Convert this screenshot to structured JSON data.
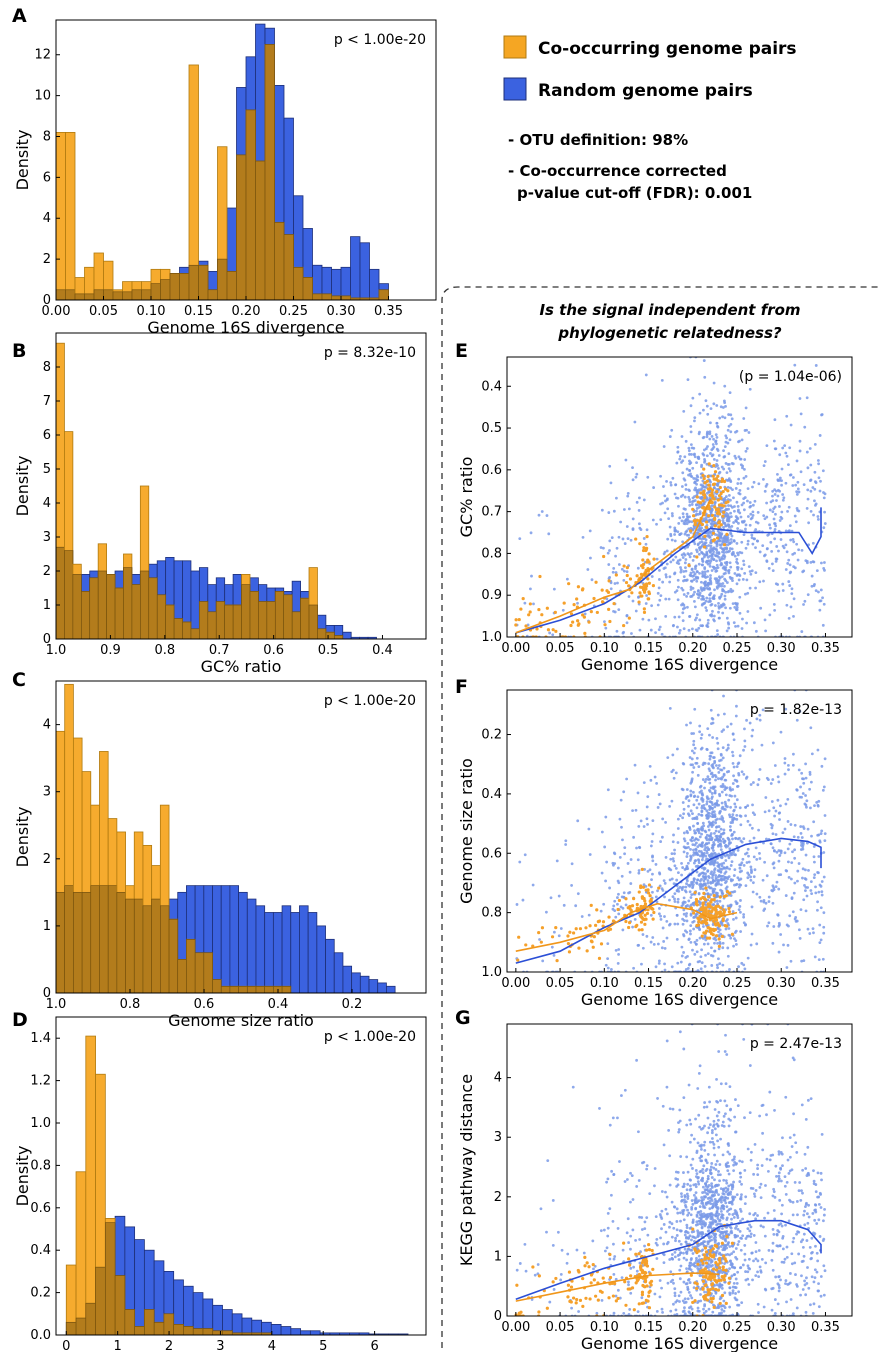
{
  "legend": {
    "items": [
      {
        "label": "Co-occurring genome pairs",
        "color": "#f5a623"
      },
      {
        "label": "Random genome pairs",
        "color": "#3b62e0"
      }
    ],
    "notes": [
      "- OTU definition: 98%",
      "- Co-occurrence corrected",
      "p-value cut-off (FDR): 0.001"
    ]
  },
  "section_title": [
    "Is the signal independent from",
    "phylogenetic relatedness?"
  ],
  "colors": {
    "co": "#f5a623",
    "co_edge": "#b07a10",
    "rand": "#3b62e0",
    "rand_edge": "#1d2f78",
    "overlap": "#b37c1c",
    "co_dot": "#f5a02a",
    "rand_dot": "#7a9ae8"
  },
  "chart_data": [
    {
      "panel": "A",
      "type": "histogram",
      "p_text": "p < 1.00e-20",
      "xlabel": "Genome 16S divergence",
      "ylabel": "Density",
      "xlim": [
        0,
        0.4
      ],
      "ylim": [
        0,
        13.7
      ],
      "xticks": [
        0,
        0.05,
        0.1,
        0.15,
        0.2,
        0.25,
        0.3,
        0.35
      ],
      "xticklabels": [
        "0.00",
        "0.05",
        "0.10",
        "0.15",
        "0.20",
        "0.25",
        "0.30",
        "0.35"
      ],
      "yticks": [
        0,
        2,
        4,
        6,
        8,
        10,
        12
      ],
      "yticklabels": [
        "0",
        "2",
        "4",
        "6",
        "8",
        "10",
        "12"
      ],
      "series": [
        {
          "name": "Co-occurring genome pairs",
          "x0": 0,
          "binw": 0.01,
          "values": [
            8.2,
            8.2,
            1.1,
            1.6,
            2.3,
            1.9,
            0.5,
            0.9,
            0.9,
            0.9,
            1.5,
            1.5,
            1.3,
            1.3,
            11.5,
            1.7,
            0.5,
            7.5,
            1.4,
            7.1,
            9.3,
            6.8,
            12.5,
            3.8,
            3.2,
            1.6,
            1.1,
            0.3,
            0.3,
            0.2,
            0.2,
            0.1,
            0.1,
            0.1,
            0.5
          ]
        },
        {
          "name": "Random genome pairs",
          "x0": 0,
          "binw": 0.01,
          "values": [
            0.5,
            0.5,
            0.3,
            0.3,
            0.5,
            0.5,
            0.4,
            0.4,
            0.5,
            0.5,
            0.8,
            1.0,
            1.3,
            1.6,
            1.7,
            1.9,
            1.4,
            2.0,
            4.5,
            10.4,
            11.9,
            13.5,
            13.3,
            10.5,
            8.9,
            5.1,
            3.5,
            1.7,
            1.6,
            1.5,
            1.6,
            3.1,
            2.8,
            1.5,
            0.8
          ]
        }
      ]
    },
    {
      "panel": "B",
      "type": "histogram",
      "p_text": "p = 8.32e-10",
      "xlabel": "GC% ratio",
      "ylabel": "Density",
      "xlim": [
        1.0,
        0.32
      ],
      "ylim": [
        0,
        9.0
      ],
      "xticks": [
        1.0,
        0.9,
        0.8,
        0.7,
        0.6,
        0.5,
        0.4
      ],
      "xticklabels": [
        "1.0",
        "0.9",
        "0.8",
        "0.7",
        "0.6",
        "0.5",
        "0.4"
      ],
      "yticks": [
        0,
        1,
        2,
        3,
        4,
        5,
        6,
        7,
        8
      ],
      "yticklabels": [
        "0",
        "1",
        "2",
        "3",
        "4",
        "5",
        "6",
        "7",
        "8"
      ],
      "series": [
        {
          "name": "Co-occurring genome pairs",
          "x0": 1.0,
          "binw": -0.0155,
          "values": [
            8.7,
            6.1,
            2.2,
            1.4,
            1.8,
            2.8,
            1.9,
            1.5,
            2.5,
            1.6,
            4.5,
            1.8,
            1.3,
            1.0,
            0.6,
            0.5,
            0.3,
            1.1,
            0.8,
            1.1,
            1.0,
            1.0,
            1.9,
            1.4,
            1.1,
            1.1,
            1.4,
            1.3,
            0.8,
            1.2,
            2.1,
            0.3,
            0.2,
            0.1,
            0,
            0,
            0,
            0
          ]
        },
        {
          "name": "Random genome pairs",
          "x0": 1.0,
          "binw": -0.0155,
          "values": [
            2.7,
            2.6,
            1.9,
            1.9,
            2.0,
            2.0,
            1.9,
            2.0,
            2.1,
            1.9,
            2.0,
            2.2,
            2.3,
            2.4,
            2.3,
            2.3,
            2.0,
            2.1,
            1.6,
            1.8,
            1.6,
            1.9,
            1.6,
            1.8,
            1.6,
            1.5,
            1.5,
            1.4,
            1.7,
            1.4,
            1.0,
            0.7,
            0.4,
            0.4,
            0.2,
            0.05,
            0.05,
            0.05
          ]
        }
      ]
    },
    {
      "panel": "C",
      "type": "histogram",
      "p_text": "p < 1.00e-20",
      "xlabel": "Genome size ratio",
      "ylabel": "Density",
      "xlim": [
        1.0,
        0.0
      ],
      "ylim": [
        0,
        4.65
      ],
      "xticks": [
        1.0,
        0.8,
        0.6,
        0.4,
        0.2
      ],
      "xticklabels": [
        "1.0",
        "0.8",
        "0.6",
        "0.4",
        "0.2"
      ],
      "yticks": [
        0,
        1,
        2,
        3,
        4
      ],
      "yticklabels": [
        "0",
        "1",
        "2",
        "3",
        "4"
      ],
      "series": [
        {
          "name": "Co-occurring genome pairs",
          "x0": 1.0,
          "binw": -0.0235,
          "values": [
            3.9,
            4.6,
            3.8,
            3.3,
            2.8,
            3.6,
            2.6,
            2.4,
            1.6,
            2.4,
            2.2,
            1.9,
            2.8,
            1.1,
            0.5,
            0.8,
            0.6,
            0.6,
            0.2,
            0.1,
            0.1,
            0.1,
            0.1,
            0.1,
            0.1,
            0.1,
            0.1,
            0,
            0,
            0,
            0,
            0,
            0,
            0,
            0,
            0,
            0,
            0,
            0
          ]
        },
        {
          "name": "Random genome pairs",
          "x0": 1.0,
          "binw": -0.0235,
          "values": [
            1.5,
            1.6,
            1.5,
            1.5,
            1.6,
            1.6,
            1.6,
            1.5,
            1.4,
            1.4,
            1.3,
            1.4,
            1.3,
            1.4,
            1.5,
            1.6,
            1.6,
            1.6,
            1.6,
            1.6,
            1.6,
            1.5,
            1.4,
            1.3,
            1.2,
            1.2,
            1.3,
            1.2,
            1.3,
            1.2,
            1.0,
            0.8,
            0.6,
            0.4,
            0.3,
            0.25,
            0.2,
            0.15,
            0.1
          ]
        }
      ]
    },
    {
      "panel": "D",
      "type": "histogram",
      "p_text": "p < 1.00e-20",
      "xlabel": "KEGG pathway distance",
      "ylabel": "Density",
      "xlim": [
        -0.2,
        7.0
      ],
      "ylim": [
        0,
        1.5
      ],
      "xticks": [
        0,
        1,
        2,
        3,
        4,
        5,
        6
      ],
      "xticklabels": [
        "0",
        "1",
        "2",
        "3",
        "4",
        "5",
        "6"
      ],
      "yticks": [
        0,
        0.2,
        0.4,
        0.6,
        0.8,
        1.0,
        1.2,
        1.4
      ],
      "yticklabels": [
        "0.0",
        "0.2",
        "0.4",
        "0.6",
        "0.8",
        "1.0",
        "1.2",
        "1.4"
      ],
      "series": [
        {
          "name": "Co-occurring genome pairs",
          "x0": 0,
          "binw": 0.19,
          "values": [
            0.33,
            0.77,
            1.41,
            1.23,
            0.55,
            0.28,
            0.12,
            0.04,
            0.12,
            0.06,
            0.1,
            0.05,
            0.04,
            0.03,
            0.03,
            0.02,
            0.02,
            0.01,
            0.01,
            0.01,
            0.01,
            0,
            0,
            0,
            0,
            0,
            0,
            0,
            0,
            0,
            0,
            0,
            0,
            0,
            0
          ]
        },
        {
          "name": "Random genome pairs",
          "x0": 0,
          "binw": 0.19,
          "values": [
            0.06,
            0.08,
            0.15,
            0.32,
            0.53,
            0.56,
            0.51,
            0.45,
            0.4,
            0.35,
            0.3,
            0.26,
            0.23,
            0.2,
            0.17,
            0.14,
            0.12,
            0.1,
            0.08,
            0.07,
            0.06,
            0.05,
            0.04,
            0.03,
            0.02,
            0.02,
            0.01,
            0.01,
            0.01,
            0.01,
            0.01,
            0.005,
            0.005,
            0.005,
            0.005
          ]
        }
      ]
    },
    {
      "panel": "E",
      "type": "scatter",
      "p_text": "(p = 1.04e-06)",
      "xlabel": "Genome 16S divergence",
      "ylabel": "GC% ratio",
      "xlim": [
        -0.01,
        0.38
      ],
      "ylim": [
        1.0,
        0.33
      ],
      "yinvert": true,
      "xticks": [
        0,
        0.05,
        0.1,
        0.15,
        0.2,
        0.25,
        0.3,
        0.35
      ],
      "xticklabels": [
        "0.00",
        "0.05",
        "0.10",
        "0.15",
        "0.20",
        "0.25",
        "0.30",
        "0.35"
      ],
      "yticks": [
        0.4,
        0.5,
        0.6,
        0.7,
        0.8,
        0.9,
        1.0
      ],
      "yticklabels": [
        "0.4",
        "0.5",
        "0.6",
        "0.7",
        "0.8",
        "0.9",
        "1.0"
      ],
      "trend_co": [
        [
          0,
          0.99
        ],
        [
          0.05,
          0.95
        ],
        [
          0.1,
          0.905
        ],
        [
          0.13,
          0.885
        ],
        [
          0.15,
          0.84
        ],
        [
          0.2,
          0.76
        ],
        [
          0.22,
          0.67
        ]
      ],
      "trend_rand": [
        [
          0,
          0.99
        ],
        [
          0.05,
          0.96
        ],
        [
          0.1,
          0.92
        ],
        [
          0.14,
          0.87
        ],
        [
          0.18,
          0.8
        ],
        [
          0.22,
          0.74
        ],
        [
          0.26,
          0.75
        ],
        [
          0.3,
          0.75
        ],
        [
          0.32,
          0.75
        ],
        [
          0.335,
          0.8
        ],
        [
          0.345,
          0.76
        ],
        [
          0.345,
          0.69
        ]
      ]
    },
    {
      "panel": "F",
      "type": "scatter",
      "p_text": "p = 1.82e-13",
      "xlabel": "Genome 16S divergence",
      "ylabel": "Genome size ratio",
      "xlim": [
        -0.01,
        0.38
      ],
      "ylim": [
        1.0,
        0.05
      ],
      "yinvert": true,
      "xticks": [
        0,
        0.05,
        0.1,
        0.15,
        0.2,
        0.25,
        0.3,
        0.35
      ],
      "xticklabels": [
        "0.00",
        "0.05",
        "0.10",
        "0.15",
        "0.20",
        "0.25",
        "0.30",
        "0.35"
      ],
      "yticks": [
        0.2,
        0.4,
        0.6,
        0.8,
        1.0
      ],
      "yticklabels": [
        "0.2",
        "0.4",
        "0.6",
        "0.8",
        "1.0"
      ],
      "trend_co": [
        [
          0,
          0.93
        ],
        [
          0.05,
          0.9
        ],
        [
          0.1,
          0.86
        ],
        [
          0.13,
          0.8
        ],
        [
          0.16,
          0.77
        ],
        [
          0.2,
          0.79
        ],
        [
          0.22,
          0.82
        ],
        [
          0.25,
          0.8
        ]
      ],
      "trend_rand": [
        [
          0,
          0.97
        ],
        [
          0.05,
          0.93
        ],
        [
          0.1,
          0.85
        ],
        [
          0.14,
          0.8
        ],
        [
          0.18,
          0.71
        ],
        [
          0.22,
          0.62
        ],
        [
          0.26,
          0.57
        ],
        [
          0.3,
          0.55
        ],
        [
          0.33,
          0.56
        ],
        [
          0.345,
          0.58
        ],
        [
          0.345,
          0.65
        ]
      ]
    },
    {
      "panel": "G",
      "type": "scatter",
      "p_text": "p = 2.47e-13",
      "xlabel": "Genome 16S divergence",
      "ylabel": "KEGG pathway distance",
      "xlim": [
        -0.01,
        0.38
      ],
      "ylim": [
        0,
        4.9
      ],
      "yinvert": false,
      "xticks": [
        0,
        0.05,
        0.1,
        0.15,
        0.2,
        0.25,
        0.3,
        0.35
      ],
      "xticklabels": [
        "0.00",
        "0.05",
        "0.10",
        "0.15",
        "0.20",
        "0.25",
        "0.30",
        "0.35"
      ],
      "yticks": [
        0,
        1,
        2,
        3,
        4
      ],
      "yticklabels": [
        "0",
        "1",
        "2",
        "3",
        "4"
      ],
      "trend_co": [
        [
          0,
          0.25
        ],
        [
          0.05,
          0.4
        ],
        [
          0.1,
          0.55
        ],
        [
          0.15,
          0.68
        ],
        [
          0.2,
          0.72
        ],
        [
          0.23,
          0.7
        ]
      ],
      "trend_rand": [
        [
          0,
          0.28
        ],
        [
          0.05,
          0.55
        ],
        [
          0.1,
          0.8
        ],
        [
          0.15,
          1.0
        ],
        [
          0.2,
          1.2
        ],
        [
          0.23,
          1.5
        ],
        [
          0.27,
          1.6
        ],
        [
          0.3,
          1.6
        ],
        [
          0.33,
          1.45
        ],
        [
          0.345,
          1.2
        ],
        [
          0.345,
          1.05
        ]
      ]
    }
  ]
}
